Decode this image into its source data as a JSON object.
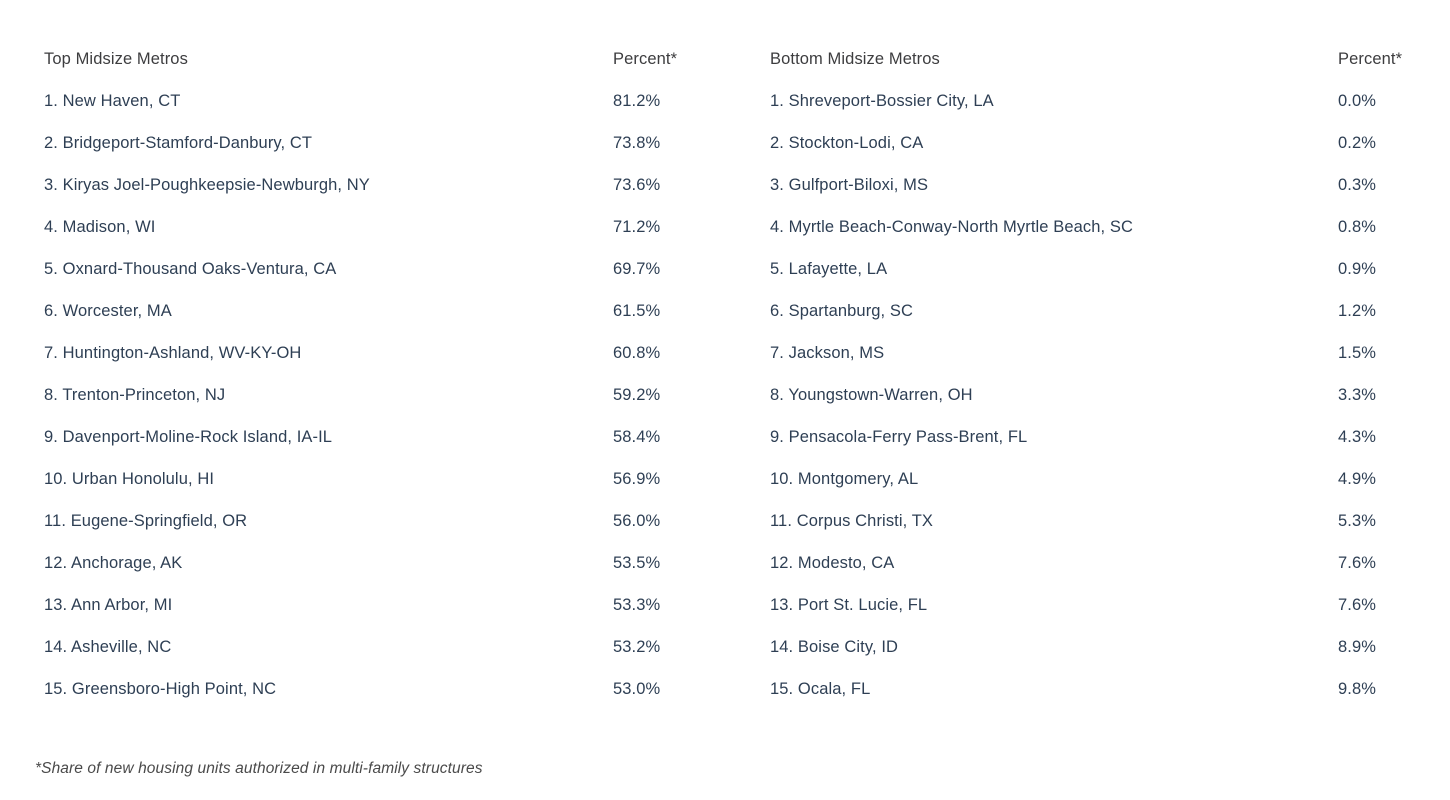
{
  "colors": {
    "background": "#ffffff",
    "row_text": "#2e3f54",
    "header_text": "#3d3d3f",
    "footnote_text": "#4a4a4a"
  },
  "chart_data": {
    "type": "table",
    "tables": [
      {
        "id": "top-midsize-metros",
        "header": {
          "name": "Top Midsize Metros",
          "percent": "Percent*"
        },
        "rows": [
          {
            "label": "1. New Haven, CT",
            "value": "81.2%"
          },
          {
            "label": "2. Bridgeport-Stamford-Danbury, CT",
            "value": "73.8%"
          },
          {
            "label": "3. Kiryas Joel-Poughkeepsie-Newburgh, NY",
            "value": "73.6%"
          },
          {
            "label": "4. Madison, WI",
            "value": "71.2%"
          },
          {
            "label": "5. Oxnard-Thousand Oaks-Ventura, CA",
            "value": "69.7%"
          },
          {
            "label": "6. Worcester, MA",
            "value": "61.5%"
          },
          {
            "label": "7. Huntington-Ashland, WV-KY-OH",
            "value": "60.8%"
          },
          {
            "label": "8. Trenton-Princeton, NJ",
            "value": "59.2%"
          },
          {
            "label": "9. Davenport-Moline-Rock Island, IA-IL",
            "value": "58.4%"
          },
          {
            "label": "10. Urban Honolulu, HI",
            "value": "56.9%"
          },
          {
            "label": "11. Eugene-Springfield, OR",
            "value": "56.0%"
          },
          {
            "label": "12. Anchorage, AK",
            "value": "53.5%"
          },
          {
            "label": "13. Ann Arbor, MI",
            "value": "53.3%"
          },
          {
            "label": "14. Asheville, NC",
            "value": "53.2%"
          },
          {
            "label": "15. Greensboro-High Point, NC",
            "value": "53.0%"
          }
        ]
      },
      {
        "id": "bottom-midsize-metros",
        "header": {
          "name": "Bottom Midsize Metros",
          "percent": "Percent*"
        },
        "rows": [
          {
            "label": "1. Shreveport-Bossier City, LA",
            "value": "0.0%"
          },
          {
            "label": "2. Stockton-Lodi, CA",
            "value": "0.2%"
          },
          {
            "label": "3. Gulfport-Biloxi, MS",
            "value": "0.3%"
          },
          {
            "label": "4. Myrtle Beach-Conway-North Myrtle Beach, SC",
            "value": "0.8%"
          },
          {
            "label": "5. Lafayette, LA",
            "value": "0.9%"
          },
          {
            "label": "6. Spartanburg, SC",
            "value": "1.2%"
          },
          {
            "label": "7. Jackson, MS",
            "value": "1.5%"
          },
          {
            "label": "8. Youngstown-Warren, OH",
            "value": "3.3%"
          },
          {
            "label": "9. Pensacola-Ferry Pass-Brent, FL",
            "value": "4.3%"
          },
          {
            "label": "10. Montgomery, AL",
            "value": "4.9%"
          },
          {
            "label": "11. Corpus Christi, TX",
            "value": "5.3%"
          },
          {
            "label": "12. Modesto, CA",
            "value": "7.6%"
          },
          {
            "label": "13. Port St. Lucie, FL",
            "value": "7.6%"
          },
          {
            "label": "14. Boise City, ID",
            "value": "8.9%"
          },
          {
            "label": "15. Ocala, FL",
            "value": "9.8%"
          }
        ]
      }
    ],
    "footnote": "*Share of new housing units authorized in multi-family structures"
  }
}
